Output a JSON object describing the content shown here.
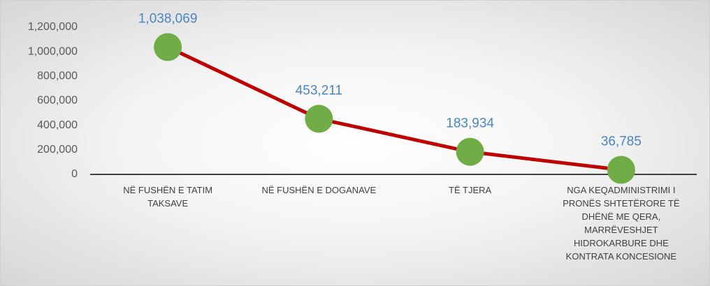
{
  "chart_data": {
    "type": "line",
    "categories": [
      "NË FUSHËN E TATIM TAKSAVE",
      "NË FUSHËN E DOGANAVE",
      "TË TJERA",
      "NGA KEQADMINISTRIMI I PRONËS SHTETËRORE TË DHËNË ME QERA, MARRËVESHJET HIDROKARBURE DHE KONTRATA KONCESIONE"
    ],
    "values": [
      1038069,
      453211,
      183934,
      36785
    ],
    "value_labels": [
      "1,038,069",
      "453,211",
      "183,934",
      "36,785"
    ],
    "line_color": "#c00000",
    "marker_color": "#70ad47",
    "ylim": [
      0,
      1200000
    ],
    "yticks": [
      0,
      {
        "value": 200000,
        "label": "200,000"
      },
      {
        "value": 400000,
        "label": "400,000"
      },
      {
        "value": 600000,
        "label": "600,000"
      },
      {
        "value": 800000,
        "label": "800,000"
      },
      {
        "value": 1000000,
        "label": "1,000,000"
      },
      {
        "value": 1200000,
        "label": "1,200,000"
      }
    ],
    "grid": false
  }
}
